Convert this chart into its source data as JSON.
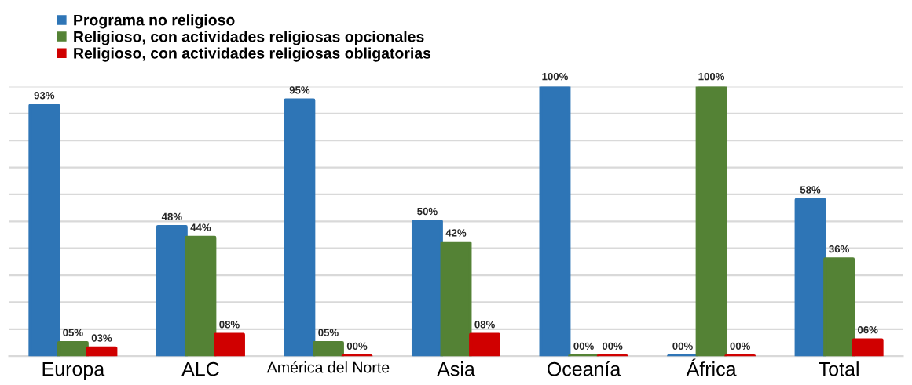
{
  "chart_data": {
    "type": "bar",
    "categories": [
      "Europa",
      "ALC",
      "América del Norte",
      "Asia",
      "Oceanía",
      "África",
      "Total"
    ],
    "series": [
      {
        "name": "Programa no religioso",
        "color": "#2e75b6",
        "values": [
          93,
          48,
          95,
          50,
          100,
          0,
          58
        ],
        "value_labels": [
          "93%",
          "48%",
          "95%",
          "50%",
          "100%",
          "00%",
          "58%"
        ]
      },
      {
        "name": "Religioso, con actividades religiosas opcionales",
        "color": "#548235",
        "values": [
          5,
          44,
          5,
          42,
          0,
          100,
          36
        ],
        "value_labels": [
          "05%",
          "44%",
          "05%",
          "42%",
          "00%",
          "100%",
          "36%"
        ]
      },
      {
        "name": "Religioso, con actividades religiosas obligatorias",
        "color": "#d00000",
        "values": [
          3,
          8,
          0,
          8,
          0,
          0,
          6
        ],
        "value_labels": [
          "03%",
          "08%",
          "00%",
          "08%",
          "00%",
          "00%",
          "06%"
        ]
      }
    ],
    "ylim": [
      0,
      100
    ],
    "yticks": [
      {
        "value": 0,
        "label": null
      },
      {
        "value": 10,
        "label": null
      },
      {
        "value": 20,
        "label": null
      },
      {
        "value": 30,
        "label": null
      },
      {
        "value": 40,
        "label": null
      },
      {
        "value": 50,
        "label": null
      },
      {
        "value": 60,
        "label": null
      },
      {
        "value": 70,
        "label": null
      },
      {
        "value": 80,
        "label": null
      },
      {
        "value": 90,
        "label": null
      },
      {
        "value": 100,
        "label": null
      }
    ],
    "grid": "y",
    "legend": "top left",
    "tick_labels": "x"
  }
}
